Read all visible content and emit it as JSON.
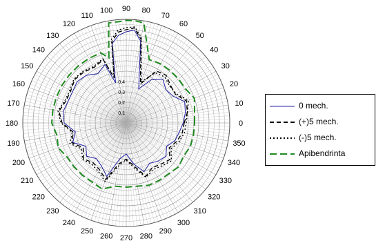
{
  "chart_data": {
    "type": "polar",
    "title": "",
    "angle_ticks": [
      "0",
      "10",
      "20",
      "30",
      "40",
      "50",
      "60",
      "70",
      "80",
      "90",
      "100",
      "110",
      "120",
      "130",
      "140",
      "150",
      "160",
      "170",
      "180",
      "190",
      "200",
      "210",
      "220",
      "230",
      "240",
      "250",
      "260",
      "270",
      "280",
      "290",
      "300",
      "310",
      "320",
      "330",
      "340",
      "350"
    ],
    "radial_ticks": [
      "0,1",
      "0,2",
      "0,3",
      "0,4"
    ],
    "radial_range": [
      0,
      1
    ],
    "grid": true,
    "legend_position": "right",
    "angles": [
      0,
      10,
      20,
      30,
      40,
      50,
      60,
      70,
      80,
      85,
      90,
      95,
      100,
      105,
      110,
      120,
      130,
      140,
      150,
      160,
      170,
      180,
      190,
      200,
      210,
      220,
      230,
      240,
      250,
      260,
      270,
      280,
      290,
      300,
      310,
      320,
      330,
      340,
      350
    ],
    "series": [
      {
        "name": "0 mech.",
        "color": "#1f1fa0",
        "dash": "solid",
        "values": [
          0.55,
          0.58,
          0.6,
          0.52,
          0.5,
          0.55,
          0.48,
          0.35,
          0.8,
          0.9,
          0.88,
          0.85,
          0.78,
          0.4,
          0.6,
          0.55,
          0.6,
          0.62,
          0.6,
          0.6,
          0.62,
          0.6,
          0.5,
          0.55,
          0.45,
          0.5,
          0.45,
          0.48,
          0.55,
          0.35,
          0.3,
          0.4,
          0.5,
          0.45,
          0.48,
          0.5,
          0.45,
          0.5,
          0.52
        ]
      },
      {
        "name": "(+)5 mech.",
        "color": "#000000",
        "dash": "6,4",
        "values": [
          0.56,
          0.6,
          0.62,
          0.55,
          0.56,
          0.6,
          0.58,
          0.4,
          0.82,
          0.92,
          0.9,
          0.88,
          0.8,
          0.45,
          0.65,
          0.62,
          0.64,
          0.65,
          0.62,
          0.62,
          0.66,
          0.62,
          0.52,
          0.56,
          0.48,
          0.54,
          0.5,
          0.52,
          0.58,
          0.4,
          0.35,
          0.42,
          0.55,
          0.5,
          0.52,
          0.55,
          0.48,
          0.52,
          0.55
        ]
      },
      {
        "name": "(-)5 mech.",
        "color": "#000000",
        "dash": "2,3",
        "values": [
          0.58,
          0.6,
          0.64,
          0.56,
          0.55,
          0.58,
          0.56,
          0.42,
          0.84,
          0.93,
          0.92,
          0.9,
          0.82,
          0.46,
          0.66,
          0.63,
          0.65,
          0.66,
          0.63,
          0.63,
          0.67,
          0.63,
          0.53,
          0.58,
          0.5,
          0.55,
          0.52,
          0.54,
          0.6,
          0.42,
          0.36,
          0.44,
          0.56,
          0.52,
          0.54,
          0.57,
          0.5,
          0.54,
          0.57
        ]
      },
      {
        "name": "Apibendrinta",
        "color": "#1f8a1f",
        "dash": "10,5",
        "values": [
          0.66,
          0.67,
          0.7,
          0.66,
          0.66,
          0.66,
          0.66,
          0.65,
          0.98,
          0.99,
          0.99,
          0.98,
          0.98,
          0.65,
          0.72,
          0.72,
          0.72,
          0.72,
          0.72,
          0.72,
          0.72,
          0.72,
          0.68,
          0.7,
          0.66,
          0.66,
          0.66,
          0.66,
          0.68,
          0.62,
          0.62,
          0.62,
          0.64,
          0.64,
          0.64,
          0.66,
          0.64,
          0.66,
          0.66
        ]
      }
    ]
  }
}
